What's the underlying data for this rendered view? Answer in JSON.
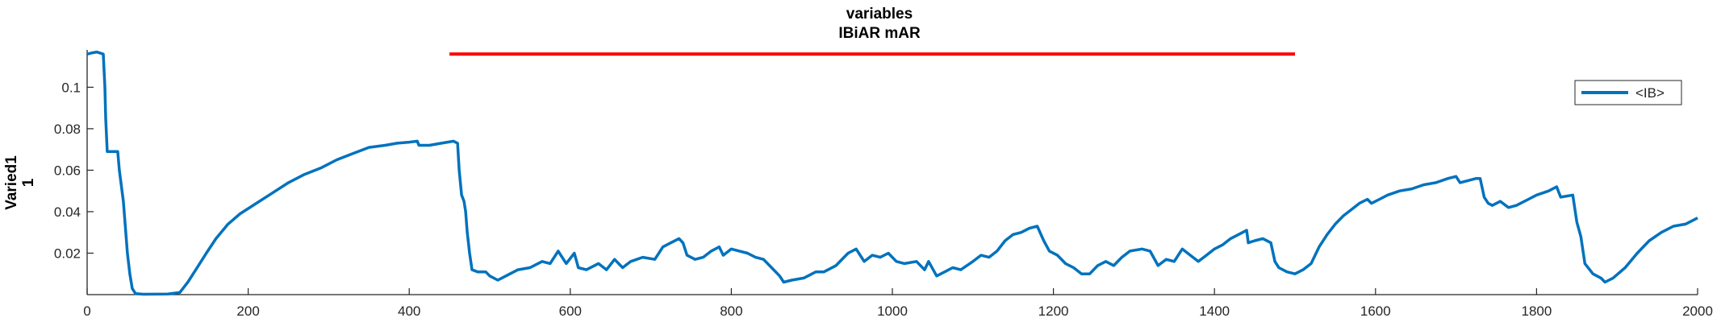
{
  "chart_data": {
    "type": "line",
    "title_line1": "variables",
    "title_line2": "IBiAR mAR",
    "ylabel_line1": "Varied1",
    "ylabel_line2": "1",
    "xlabel": "",
    "xlim": [
      0,
      2000
    ],
    "ylim": [
      0,
      0.118
    ],
    "xticks": [
      0,
      200,
      400,
      600,
      800,
      1000,
      1200,
      1400,
      1600,
      1800,
      2000
    ],
    "yticks": [
      0.02,
      0.04,
      0.06,
      0.08,
      0.1
    ],
    "ytick_labels": [
      "0.02",
      "0.04",
      "0.06",
      "0.08",
      "0.1"
    ],
    "grid": false,
    "legend": {
      "entries": [
        "<IB>"
      ],
      "location": "top-right"
    },
    "series": [
      {
        "name": "<IB>",
        "color": "#0072BD",
        "points": [
          [
            0,
            0.116
          ],
          [
            5,
            0.1165
          ],
          [
            12,
            0.117
          ],
          [
            20,
            0.116
          ],
          [
            22,
            0.1
          ],
          [
            23,
            0.085
          ],
          [
            25,
            0.069
          ],
          [
            30,
            0.069
          ],
          [
            38,
            0.069
          ],
          [
            40,
            0.06
          ],
          [
            45,
            0.045
          ],
          [
            48,
            0.03
          ],
          [
            50,
            0.02
          ],
          [
            53,
            0.01
          ],
          [
            56,
            0.003
          ],
          [
            60,
            0.0005
          ],
          [
            70,
            0.0002
          ],
          [
            100,
            0.0003
          ],
          [
            115,
            0.001
          ],
          [
            125,
            0.006
          ],
          [
            135,
            0.012
          ],
          [
            148,
            0.02
          ],
          [
            160,
            0.027
          ],
          [
            175,
            0.034
          ],
          [
            190,
            0.039
          ],
          [
            210,
            0.044
          ],
          [
            230,
            0.049
          ],
          [
            250,
            0.054
          ],
          [
            270,
            0.058
          ],
          [
            290,
            0.061
          ],
          [
            310,
            0.065
          ],
          [
            330,
            0.068
          ],
          [
            350,
            0.071
          ],
          [
            370,
            0.072
          ],
          [
            385,
            0.073
          ],
          [
            400,
            0.0735
          ],
          [
            410,
            0.074
          ],
          [
            412,
            0.072
          ],
          [
            425,
            0.072
          ],
          [
            440,
            0.073
          ],
          [
            455,
            0.074
          ],
          [
            460,
            0.073
          ],
          [
            462,
            0.06
          ],
          [
            465,
            0.048
          ],
          [
            468,
            0.045
          ],
          [
            470,
            0.04
          ],
          [
            472,
            0.03
          ],
          [
            475,
            0.02
          ],
          [
            478,
            0.012
          ],
          [
            485,
            0.011
          ],
          [
            495,
            0.011
          ],
          [
            500,
            0.009
          ],
          [
            510,
            0.007
          ],
          [
            520,
            0.009
          ],
          [
            535,
            0.012
          ],
          [
            550,
            0.013
          ],
          [
            565,
            0.016
          ],
          [
            575,
            0.015
          ],
          [
            585,
            0.021
          ],
          [
            595,
            0.015
          ],
          [
            605,
            0.02
          ],
          [
            610,
            0.013
          ],
          [
            620,
            0.012
          ],
          [
            635,
            0.015
          ],
          [
            645,
            0.012
          ],
          [
            655,
            0.017
          ],
          [
            665,
            0.013
          ],
          [
            675,
            0.016
          ],
          [
            690,
            0.018
          ],
          [
            705,
            0.017
          ],
          [
            715,
            0.023
          ],
          [
            725,
            0.025
          ],
          [
            735,
            0.027
          ],
          [
            740,
            0.025
          ],
          [
            745,
            0.019
          ],
          [
            755,
            0.017
          ],
          [
            765,
            0.018
          ],
          [
            775,
            0.021
          ],
          [
            785,
            0.023
          ],
          [
            790,
            0.019
          ],
          [
            800,
            0.022
          ],
          [
            810,
            0.021
          ],
          [
            820,
            0.02
          ],
          [
            830,
            0.018
          ],
          [
            840,
            0.017
          ],
          [
            850,
            0.013
          ],
          [
            860,
            0.009
          ],
          [
            865,
            0.006
          ],
          [
            875,
            0.007
          ],
          [
            890,
            0.008
          ],
          [
            905,
            0.011
          ],
          [
            915,
            0.011
          ],
          [
            930,
            0.014
          ],
          [
            945,
            0.02
          ],
          [
            955,
            0.022
          ],
          [
            965,
            0.016
          ],
          [
            975,
            0.019
          ],
          [
            985,
            0.018
          ],
          [
            995,
            0.02
          ],
          [
            1005,
            0.016
          ],
          [
            1015,
            0.015
          ],
          [
            1030,
            0.016
          ],
          [
            1040,
            0.012
          ],
          [
            1045,
            0.016
          ],
          [
            1055,
            0.009
          ],
          [
            1065,
            0.011
          ],
          [
            1075,
            0.013
          ],
          [
            1085,
            0.012
          ],
          [
            1100,
            0.016
          ],
          [
            1110,
            0.019
          ],
          [
            1120,
            0.018
          ],
          [
            1130,
            0.021
          ],
          [
            1140,
            0.026
          ],
          [
            1150,
            0.029
          ],
          [
            1160,
            0.03
          ],
          [
            1170,
            0.032
          ],
          [
            1180,
            0.033
          ],
          [
            1188,
            0.026
          ],
          [
            1195,
            0.021
          ],
          [
            1205,
            0.019
          ],
          [
            1215,
            0.015
          ],
          [
            1225,
            0.013
          ],
          [
            1235,
            0.01
          ],
          [
            1245,
            0.01
          ],
          [
            1255,
            0.014
          ],
          [
            1265,
            0.016
          ],
          [
            1275,
            0.014
          ],
          [
            1285,
            0.018
          ],
          [
            1295,
            0.021
          ],
          [
            1310,
            0.022
          ],
          [
            1320,
            0.021
          ],
          [
            1330,
            0.014
          ],
          [
            1340,
            0.017
          ],
          [
            1350,
            0.016
          ],
          [
            1360,
            0.022
          ],
          [
            1370,
            0.019
          ],
          [
            1380,
            0.016
          ],
          [
            1390,
            0.019
          ],
          [
            1400,
            0.022
          ],
          [
            1410,
            0.024
          ],
          [
            1420,
            0.027
          ],
          [
            1430,
            0.029
          ],
          [
            1440,
            0.031
          ],
          [
            1442,
            0.025
          ],
          [
            1450,
            0.026
          ],
          [
            1460,
            0.027
          ],
          [
            1470,
            0.025
          ],
          [
            1475,
            0.016
          ],
          [
            1480,
            0.013
          ],
          [
            1490,
            0.011
          ],
          [
            1500,
            0.01
          ],
          [
            1510,
            0.012
          ],
          [
            1520,
            0.015
          ],
          [
            1530,
            0.023
          ],
          [
            1540,
            0.029
          ],
          [
            1550,
            0.034
          ],
          [
            1560,
            0.038
          ],
          [
            1570,
            0.041
          ],
          [
            1580,
            0.044
          ],
          [
            1590,
            0.046
          ],
          [
            1595,
            0.044
          ],
          [
            1605,
            0.046
          ],
          [
            1615,
            0.048
          ],
          [
            1630,
            0.05
          ],
          [
            1645,
            0.051
          ],
          [
            1660,
            0.053
          ],
          [
            1675,
            0.054
          ],
          [
            1690,
            0.056
          ],
          [
            1700,
            0.057
          ],
          [
            1705,
            0.054
          ],
          [
            1715,
            0.055
          ],
          [
            1725,
            0.056
          ],
          [
            1730,
            0.056
          ],
          [
            1735,
            0.047
          ],
          [
            1740,
            0.044
          ],
          [
            1745,
            0.043
          ],
          [
            1755,
            0.045
          ],
          [
            1765,
            0.042
          ],
          [
            1775,
            0.043
          ],
          [
            1790,
            0.046
          ],
          [
            1800,
            0.048
          ],
          [
            1815,
            0.05
          ],
          [
            1825,
            0.052
          ],
          [
            1830,
            0.047
          ],
          [
            1845,
            0.048
          ],
          [
            1850,
            0.035
          ],
          [
            1855,
            0.028
          ],
          [
            1860,
            0.015
          ],
          [
            1870,
            0.01
          ],
          [
            1880,
            0.008
          ],
          [
            1885,
            0.006
          ],
          [
            1895,
            0.008
          ],
          [
            1910,
            0.013
          ],
          [
            1925,
            0.02
          ],
          [
            1940,
            0.026
          ],
          [
            1955,
            0.03
          ],
          [
            1970,
            0.033
          ],
          [
            1985,
            0.034
          ],
          [
            1995,
            0.036
          ],
          [
            2000,
            0.037
          ]
        ]
      }
    ],
    "annotations": [
      {
        "type": "hline",
        "color": "#ff0000",
        "x_start": 450,
        "x_end": 1500,
        "y": 0.116
      }
    ]
  }
}
